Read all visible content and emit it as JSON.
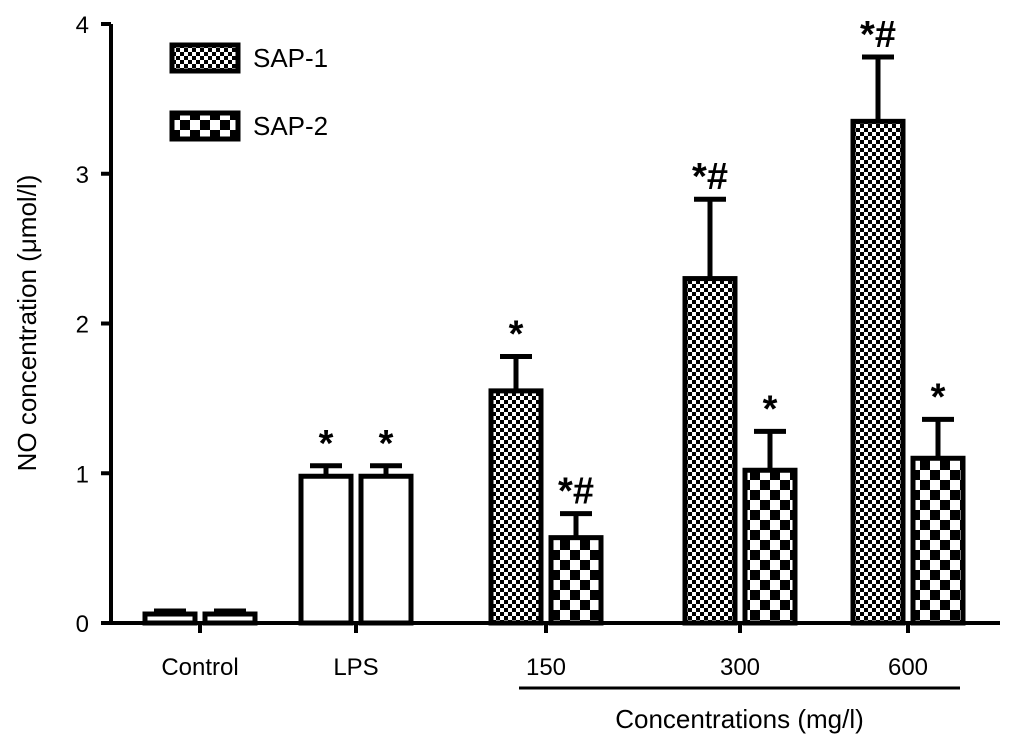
{
  "chart_data": {
    "type": "bar",
    "title": "",
    "ylabel": "NO concentration (μmol/l)",
    "xlabel": "Concentrations (mg/l)",
    "ylim": [
      0,
      4
    ],
    "yticks": [
      "0",
      "1",
      "2",
      "3",
      "4"
    ],
    "categories": [
      "Control",
      "LPS",
      "150",
      "300",
      "600"
    ],
    "bracketed_categories": [
      "150",
      "300",
      "600"
    ],
    "legend": {
      "placement": "top-left",
      "entries": [
        "SAP-1",
        "SAP-2"
      ]
    },
    "series": [
      {
        "name": "SAP-1",
        "pattern": "dense-checker",
        "values": [
          0.06,
          0.98,
          1.55,
          2.3,
          3.35
        ],
        "errors": [
          0.02,
          0.07,
          0.23,
          0.53,
          0.43
        ],
        "labels": [
          "",
          "*",
          "*",
          "*#",
          "*#"
        ]
      },
      {
        "name": "SAP-2",
        "pattern": "coarse-checker",
        "values": [
          0.06,
          0.98,
          0.57,
          1.02,
          1.1
        ],
        "errors": [
          0.02,
          0.07,
          0.16,
          0.26,
          0.26
        ],
        "labels": [
          "",
          "*",
          "*#",
          "*",
          "*"
        ]
      }
    ],
    "unfilled_categories": [
      "Control",
      "LPS"
    ],
    "grid": false
  }
}
